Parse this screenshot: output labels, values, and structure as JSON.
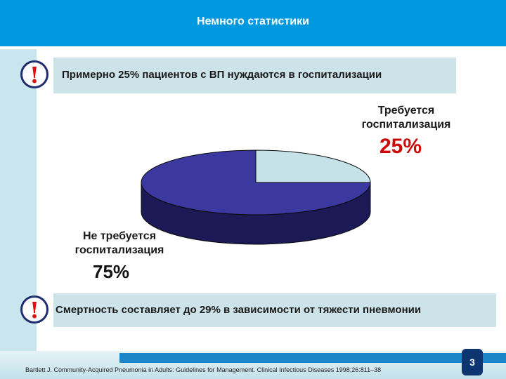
{
  "header": {
    "title": "Немного статистики"
  },
  "callouts": [
    {
      "icon": "exclamation-icon",
      "glyph": "!",
      "text": "Примерно 25% пациентов с ВП нуждаются в госпитализации"
    },
    {
      "icon": "exclamation-icon",
      "glyph": "!",
      "text": "Смертность составляет до 29% в зависимости от тяжести пневмонии"
    }
  ],
  "chart_data": {
    "type": "pie",
    "title": "",
    "labels": [
      "Требуется госпитализация",
      "Не требуется госпитализация"
    ],
    "values": [
      25,
      75
    ],
    "value_labels": [
      "25%",
      "75%"
    ],
    "colors": [
      "#c5e2e8",
      "#3b39a0"
    ],
    "side_colors": [
      "#8fb0b6",
      "#1b1a57"
    ],
    "legend": "none",
    "style": "3d"
  },
  "slice_labels": {
    "yes": {
      "line1": "Требуется",
      "line2": "госпитализация",
      "pct": "25%"
    },
    "no": {
      "line1": "Не требуется",
      "line2": "госпитализация",
      "pct": "75%"
    }
  },
  "footer": {
    "citation": "Bartlett J. Community-Acquired Pneumonia in Adults: Guidelines for Management. Clinical Infectious Diseases 1998;26:811–38",
    "page_number": "3"
  },
  "colors": {
    "accent": "#0099e0",
    "callout_bg": "#cde3ea",
    "alert": "#e01010"
  }
}
